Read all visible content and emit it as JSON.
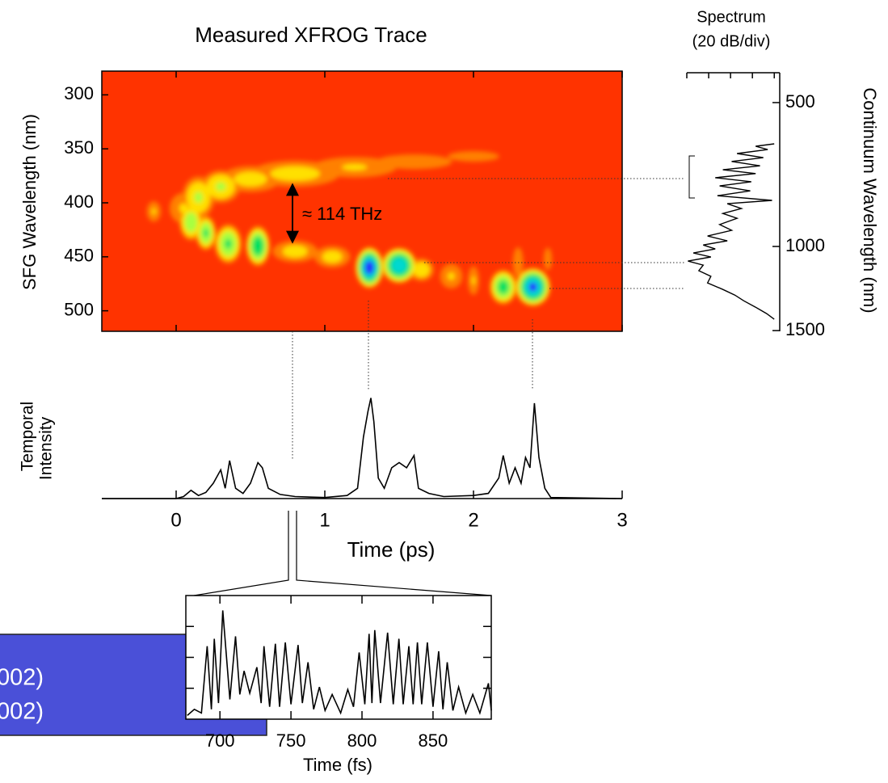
{
  "chart_data": [
    {
      "type": "heatmap",
      "title": "Measured XFROG Trace",
      "ylabel": "SFG Wavelength (nm)",
      "annotation": "≈ 114 THz",
      "xlim": [
        -0.5,
        3
      ],
      "ylim": [
        519,
        278
      ],
      "xticks": [
        0,
        1,
        2,
        3
      ],
      "yticks": [
        300,
        350,
        400,
        450,
        500
      ],
      "colormap": [
        "#ff3300",
        "#ff8000",
        "#ffe000",
        "#a8ff40",
        "#00e060",
        "#00d8d0",
        "#2030ff"
      ],
      "spots": [
        {
          "x": 0.05,
          "y": 405,
          "width": 0.1,
          "height": 15,
          "peak": 0.3
        },
        {
          "x": 0.15,
          "y": 395,
          "width": 0.1,
          "height": 18,
          "peak": 0.45
        },
        {
          "x": 0.3,
          "y": 385,
          "width": 0.12,
          "height": 14,
          "peak": 0.45
        },
        {
          "x": 0.5,
          "y": 378,
          "width": 0.2,
          "height": 12,
          "peak": 0.35
        },
        {
          "x": 0.8,
          "y": 373,
          "width": 0.3,
          "height": 12,
          "peak": 0.35
        },
        {
          "x": 1.2,
          "y": 367,
          "width": 0.3,
          "height": 10,
          "peak": 0.3
        },
        {
          "x": 1.6,
          "y": 362,
          "width": 0.3,
          "height": 8,
          "peak": 0.25
        },
        {
          "x": 2.0,
          "y": 357,
          "width": 0.25,
          "height": 7,
          "peak": 0.2
        },
        {
          "x": -0.15,
          "y": 408,
          "width": 0.05,
          "height": 10,
          "peak": 0.3
        },
        {
          "x": 0.1,
          "y": 418,
          "width": 0.07,
          "height": 15,
          "peak": 0.55
        },
        {
          "x": 0.2,
          "y": 428,
          "width": 0.06,
          "height": 14,
          "peak": 0.6
        },
        {
          "x": 0.35,
          "y": 438,
          "width": 0.08,
          "height": 16,
          "peak": 0.6
        },
        {
          "x": 0.55,
          "y": 440,
          "width": 0.07,
          "height": 16,
          "peak": 0.7
        },
        {
          "x": 0.8,
          "y": 445,
          "width": 0.15,
          "height": 10,
          "peak": 0.35
        },
        {
          "x": 1.05,
          "y": 450,
          "width": 0.12,
          "height": 10,
          "peak": 0.35
        },
        {
          "x": 1.3,
          "y": 460,
          "width": 0.08,
          "height": 16,
          "peak": 0.95
        },
        {
          "x": 1.5,
          "y": 458,
          "width": 0.1,
          "height": 14,
          "peak": 0.85
        },
        {
          "x": 1.65,
          "y": 462,
          "width": 0.08,
          "height": 10,
          "peak": 0.4
        },
        {
          "x": 1.85,
          "y": 468,
          "width": 0.08,
          "height": 12,
          "peak": 0.3
        },
        {
          "x": 2.0,
          "y": 472,
          "width": 0.04,
          "height": 14,
          "peak": 0.3
        },
        {
          "x": 2.2,
          "y": 478,
          "width": 0.08,
          "height": 14,
          "peak": 0.65
        },
        {
          "x": 2.4,
          "y": 478,
          "width": 0.1,
          "height": 15,
          "peak": 0.9
        },
        {
          "x": 2.3,
          "y": 455,
          "width": 0.05,
          "height": 20,
          "peak": 0.2
        },
        {
          "x": 2.5,
          "y": 452,
          "width": 0.04,
          "height": 15,
          "peak": 0.2
        }
      ]
    },
    {
      "type": "line",
      "ylabel": [
        "Temporal",
        "Intensity"
      ],
      "xlabel": "Time (ps)",
      "color": "#000000",
      "xlim": [
        -0.5,
        3
      ],
      "ylim": [
        0,
        1
      ],
      "xticks": [
        0,
        1,
        2,
        3
      ],
      "x": [
        -0.5,
        0,
        0.05,
        0.1,
        0.15,
        0.2,
        0.25,
        0.3,
        0.33,
        0.36,
        0.4,
        0.45,
        0.5,
        0.55,
        0.58,
        0.62,
        0.7,
        0.8,
        1.0,
        1.15,
        1.22,
        1.26,
        1.29,
        1.31,
        1.33,
        1.36,
        1.4,
        1.45,
        1.5,
        1.55,
        1.6,
        1.63,
        1.7,
        1.8,
        2.0,
        2.1,
        2.17,
        2.2,
        2.24,
        2.28,
        2.32,
        2.35,
        2.38,
        2.41,
        2.44,
        2.48,
        2.52,
        3.0
      ],
      "values": [
        0,
        0,
        0.02,
        0.08,
        0.03,
        0.06,
        0.15,
        0.28,
        0.1,
        0.37,
        0.1,
        0.05,
        0.15,
        0.35,
        0.3,
        0.1,
        0.04,
        0.02,
        0.01,
        0.03,
        0.1,
        0.6,
        0.85,
        0.98,
        0.75,
        0.2,
        0.1,
        0.3,
        0.35,
        0.3,
        0.42,
        0.1,
        0.05,
        0.02,
        0.03,
        0.05,
        0.2,
        0.42,
        0.15,
        0.3,
        0.15,
        0.4,
        0.3,
        0.93,
        0.4,
        0.1,
        0.01,
        0
      ]
    },
    {
      "type": "spectrum",
      "title": [
        "Spectrum",
        "(20 dB/div)"
      ],
      "ylabel": "Continuum Wavelength (nm)",
      "color": "#000000",
      "xlim": [
        -80,
        5
      ],
      "xticks": [
        -80,
        -60,
        -40,
        -20,
        0
      ],
      "xtick_labels": false,
      "ylim": [
        1505,
        433
      ],
      "yticks": [
        500,
        1000,
        1500
      ],
      "log_scale": true,
      "y": [
        610,
        617,
        627,
        639,
        652,
        664,
        678,
        691,
        704,
        718,
        732,
        747,
        765,
        783,
        801,
        814,
        833,
        853,
        873,
        900,
        925,
        951,
        973,
        993,
        1012,
        1032,
        1052,
        1073,
        1094,
        1124,
        1155,
        1192,
        1230,
        1264,
        1299,
        1340,
        1382,
        1420
      ],
      "values": [
        0,
        -17,
        -6,
        -34,
        -10,
        -39,
        -13,
        -47,
        -17,
        -54,
        -21,
        -50,
        -22,
        -52,
        -2,
        -43,
        -30,
        -47,
        -34,
        -50,
        -39,
        -61,
        -43,
        -65,
        -54,
        -74,
        -58,
        -79,
        -65,
        -69,
        -58,
        -61,
        -47,
        -36,
        -28,
        -17,
        -7,
        0
      ]
    },
    {
      "type": "line",
      "xlabel": "Time (fs)",
      "color": "#000000",
      "xlim": [
        676,
        891
      ],
      "xticks": [
        700,
        750,
        800,
        850
      ],
      "ylim": [
        0,
        1
      ],
      "yticks": [
        0.25,
        0.5,
        0.75
      ],
      "ytick_labels": false,
      "x": [
        677,
        682,
        687,
        691,
        694,
        696,
        699,
        702,
        707,
        711,
        714,
        717,
        721,
        726,
        729,
        731,
        735,
        739,
        742,
        746,
        750,
        755,
        758,
        762,
        766,
        770,
        774,
        779,
        785,
        790,
        794,
        798,
        802,
        805,
        807,
        809,
        813,
        818,
        822,
        826,
        829,
        833,
        836,
        839,
        842,
        846,
        850,
        854,
        857,
        860,
        864,
        868,
        873,
        878,
        883,
        889,
        891
      ],
      "values": [
        0.03,
        0.08,
        0.05,
        0.59,
        0.08,
        0.65,
        0.13,
        0.88,
        0.16,
        0.67,
        0.2,
        0.39,
        0.21,
        0.42,
        0.13,
        0.59,
        0.1,
        0.61,
        0.1,
        0.62,
        0.12,
        0.6,
        0.13,
        0.46,
        0.08,
        0.26,
        0.07,
        0.2,
        0.05,
        0.24,
        0.1,
        0.54,
        0.12,
        0.69,
        0.13,
        0.72,
        0.13,
        0.7,
        0.12,
        0.65,
        0.12,
        0.59,
        0.12,
        0.62,
        0.12,
        0.62,
        0.1,
        0.55,
        0.08,
        0.46,
        0.07,
        0.26,
        0.05,
        0.2,
        0.05,
        0.29,
        0.07
      ]
    }
  ],
  "text_box": {
    "lines": [
      "002)",
      "002)"
    ]
  }
}
